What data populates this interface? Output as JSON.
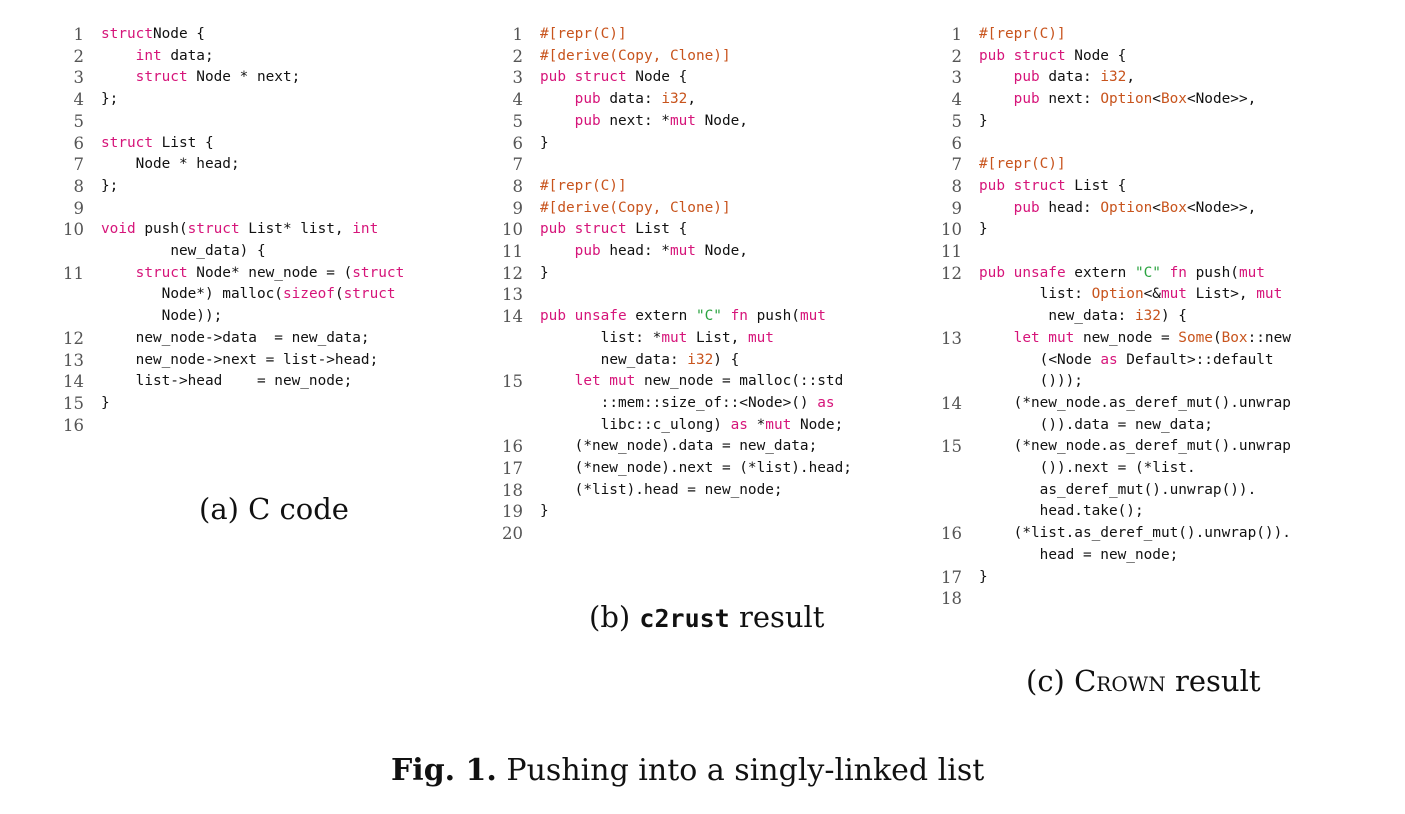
{
  "panels": [
    {
      "id": "a",
      "caption": "(a) C code",
      "lines": [
        {
          "n": "1",
          "code": [
            [
              "kw",
              "struct"
            ],
            [
              "",
              "Node {"
            ]
          ]
        },
        {
          "n": "2",
          "code": [
            [
              "",
              "    "
            ],
            [
              "kw",
              "int"
            ],
            [
              "",
              " data;"
            ]
          ]
        },
        {
          "n": "3",
          "code": [
            [
              "",
              "    "
            ],
            [
              "kw",
              "struct"
            ],
            [
              "",
              " Node * next;"
            ]
          ]
        },
        {
          "n": "4",
          "code": [
            [
              "",
              "};"
            ]
          ]
        },
        {
          "n": "5",
          "code": []
        },
        {
          "n": "6",
          "code": [
            [
              "kw",
              "struct"
            ],
            [
              "",
              " List {"
            ]
          ]
        },
        {
          "n": "7",
          "code": [
            [
              "",
              "    Node * head;"
            ]
          ]
        },
        {
          "n": "8",
          "code": [
            [
              "",
              "};"
            ]
          ]
        },
        {
          "n": "9",
          "code": []
        },
        {
          "n": "10",
          "code": [
            [
              "kw",
              "void"
            ],
            [
              "",
              " push("
            ],
            [
              "kw",
              "struct"
            ],
            [
              "",
              " List* list, "
            ],
            [
              "kw",
              "int"
            ],
            [
              "",
              "\n        new_data) {"
            ]
          ]
        },
        {
          "n": "11",
          "code": [
            [
              "",
              "    "
            ],
            [
              "kw",
              "struct"
            ],
            [
              "",
              " Node* new_node = ("
            ],
            [
              "kw",
              "struct"
            ],
            [
              "",
              "\n       Node*) malloc("
            ],
            [
              "kw",
              "sizeof"
            ],
            [
              "",
              "("
            ],
            [
              "kw",
              "struct"
            ],
            [
              "",
              "\n       Node));"
            ]
          ]
        },
        {
          "n": "12",
          "code": [
            [
              "",
              "    new_node->data  = new_data;"
            ]
          ]
        },
        {
          "n": "13",
          "code": [
            [
              "",
              "    new_node->next = list->head;"
            ]
          ]
        },
        {
          "n": "14",
          "code": [
            [
              "",
              "    list->head    = new_node;"
            ]
          ]
        },
        {
          "n": "15",
          "code": [
            [
              "",
              "}"
            ]
          ]
        },
        {
          "n": "16",
          "code": []
        }
      ]
    },
    {
      "id": "b",
      "caption_pre": "(b) ",
      "caption_mono": "c2rust",
      "caption_post": " result",
      "lines": [
        {
          "n": "1",
          "code": [
            [
              "at",
              "#[repr(C)]"
            ]
          ]
        },
        {
          "n": "2",
          "code": [
            [
              "at",
              "#[derive(Copy, Clone)]"
            ]
          ]
        },
        {
          "n": "3",
          "code": [
            [
              "kw",
              "pub struct"
            ],
            [
              "",
              " Node {"
            ]
          ]
        },
        {
          "n": "4",
          "code": [
            [
              "",
              "    "
            ],
            [
              "kw",
              "pub"
            ],
            [
              "",
              " data: "
            ],
            [
              "ty",
              "i32"
            ],
            [
              "",
              ","
            ]
          ]
        },
        {
          "n": "5",
          "code": [
            [
              "",
              "    "
            ],
            [
              "kw",
              "pub"
            ],
            [
              "",
              " next: *"
            ],
            [
              "kw",
              "mut"
            ],
            [
              "",
              " Node,"
            ]
          ]
        },
        {
          "n": "6",
          "code": [
            [
              "",
              "}"
            ]
          ]
        },
        {
          "n": "7",
          "code": []
        },
        {
          "n": "8",
          "code": [
            [
              "at",
              "#[repr(C)]"
            ]
          ]
        },
        {
          "n": "9",
          "code": [
            [
              "at",
              "#[derive(Copy, Clone)]"
            ]
          ]
        },
        {
          "n": "10",
          "code": [
            [
              "kw",
              "pub struct"
            ],
            [
              "",
              " List {"
            ]
          ]
        },
        {
          "n": "11",
          "code": [
            [
              "",
              "    "
            ],
            [
              "kw",
              "pub"
            ],
            [
              "",
              " head: *"
            ],
            [
              "kw",
              "mut"
            ],
            [
              "",
              " Node,"
            ]
          ]
        },
        {
          "n": "12",
          "code": [
            [
              "",
              "}"
            ]
          ]
        },
        {
          "n": "13",
          "code": []
        },
        {
          "n": "14",
          "code": [
            [
              "kw",
              "pub unsafe"
            ],
            [
              "",
              " extern "
            ],
            [
              "st",
              "\"C\""
            ],
            [
              "",
              " "
            ],
            [
              "kw",
              "fn"
            ],
            [
              "",
              " push("
            ],
            [
              "kw",
              "mut"
            ],
            [
              "",
              "\n       list: *"
            ],
            [
              "kw",
              "mut"
            ],
            [
              "",
              " List, "
            ],
            [
              "kw",
              "mut"
            ],
            [
              "",
              "\n       new_data: "
            ],
            [
              "ty",
              "i32"
            ],
            [
              "",
              ") {"
            ]
          ]
        },
        {
          "n": "15",
          "code": [
            [
              "",
              "    "
            ],
            [
              "kw",
              "let mut"
            ],
            [
              "",
              " new_node = malloc(::std\n       ::mem::size_of::<Node>() "
            ],
            [
              "kw",
              "as"
            ],
            [
              "",
              "\n       libc::c_ulong) "
            ],
            [
              "kw",
              "as"
            ],
            [
              "",
              " *"
            ],
            [
              "kw",
              "mut"
            ],
            [
              "",
              " Node;"
            ]
          ]
        },
        {
          "n": "16",
          "code": [
            [
              "",
              "    (*new_node).data = new_data;"
            ]
          ]
        },
        {
          "n": "17",
          "code": [
            [
              "",
              "    (*new_node).next = (*list).head;"
            ]
          ]
        },
        {
          "n": "18",
          "code": [
            [
              "",
              "    (*list).head = new_node;"
            ]
          ]
        },
        {
          "n": "19",
          "code": [
            [
              "",
              "}"
            ]
          ]
        },
        {
          "n": "20",
          "code": []
        }
      ]
    },
    {
      "id": "c",
      "caption_pre": "(c) ",
      "caption_sc": "Crown",
      "caption_post": " result",
      "lines": [
        {
          "n": "1",
          "code": [
            [
              "at",
              "#[repr(C)]"
            ]
          ]
        },
        {
          "n": "2",
          "code": [
            [
              "kw",
              "pub struct"
            ],
            [
              "",
              " Node {"
            ]
          ]
        },
        {
          "n": "3",
          "code": [
            [
              "",
              "    "
            ],
            [
              "kw",
              "pub"
            ],
            [
              "",
              " data: "
            ],
            [
              "ty",
              "i32"
            ],
            [
              "",
              ","
            ]
          ]
        },
        {
          "n": "4",
          "code": [
            [
              "",
              "    "
            ],
            [
              "kw",
              "pub"
            ],
            [
              "",
              " next: "
            ],
            [
              "ty",
              "Option"
            ],
            [
              "",
              "<"
            ],
            [
              "ty",
              "Box"
            ],
            [
              "",
              "<Node>>,"
            ]
          ]
        },
        {
          "n": "5",
          "code": [
            [
              "",
              "}"
            ]
          ]
        },
        {
          "n": "6",
          "code": []
        },
        {
          "n": "7",
          "code": [
            [
              "at",
              "#[repr(C)]"
            ]
          ]
        },
        {
          "n": "8",
          "code": [
            [
              "kw",
              "pub struct"
            ],
            [
              "",
              " List {"
            ]
          ]
        },
        {
          "n": "9",
          "code": [
            [
              "",
              "    "
            ],
            [
              "kw",
              "pub"
            ],
            [
              "",
              " head: "
            ],
            [
              "ty",
              "Option"
            ],
            [
              "",
              "<"
            ],
            [
              "ty",
              "Box"
            ],
            [
              "",
              "<Node>>,"
            ]
          ]
        },
        {
          "n": "10",
          "code": [
            [
              "",
              "}"
            ]
          ]
        },
        {
          "n": "11",
          "code": []
        },
        {
          "n": "12",
          "code": [
            [
              "kw",
              "pub unsafe"
            ],
            [
              "",
              " extern "
            ],
            [
              "st",
              "\"C\""
            ],
            [
              "",
              " "
            ],
            [
              "kw",
              "fn"
            ],
            [
              "",
              " push("
            ],
            [
              "kw",
              "mut"
            ],
            [
              "",
              "\n       list: "
            ],
            [
              "ty",
              "Option"
            ],
            [
              "",
              "<&"
            ],
            [
              "kw",
              "mut"
            ],
            [
              "",
              " List>, "
            ],
            [
              "kw",
              "mut"
            ],
            [
              "",
              "\n        new_data: "
            ],
            [
              "ty",
              "i32"
            ],
            [
              "",
              ") {"
            ]
          ]
        },
        {
          "n": "13",
          "code": [
            [
              "",
              "    "
            ],
            [
              "kw",
              "let mut"
            ],
            [
              "",
              " new_node = "
            ],
            [
              "ty",
              "Some"
            ],
            [
              "",
              "("
            ],
            [
              "ty",
              "Box"
            ],
            [
              "",
              "::new\n       (<Node "
            ],
            [
              "kw",
              "as"
            ],
            [
              "",
              " Default>::default\n       ()));"
            ]
          ]
        },
        {
          "n": "14",
          "code": [
            [
              "",
              "    (*new_node.as_deref_mut().unwrap\n       ()).data = new_data;"
            ]
          ]
        },
        {
          "n": "15",
          "code": [
            [
              "",
              "    (*new_node.as_deref_mut().unwrap\n       ()).next = (*list.\n       as_deref_mut().unwrap()).\n       head.take();"
            ]
          ]
        },
        {
          "n": "16",
          "code": [
            [
              "",
              "    (*list.as_deref_mut().unwrap()).\n       head = new_node;"
            ]
          ]
        },
        {
          "n": "17",
          "code": [
            [
              "",
              "}"
            ]
          ]
        },
        {
          "n": "18",
          "code": []
        }
      ]
    }
  ],
  "figure_caption": {
    "label": "Fig. 1.",
    "text": " Pushing into a singly-linked list"
  }
}
